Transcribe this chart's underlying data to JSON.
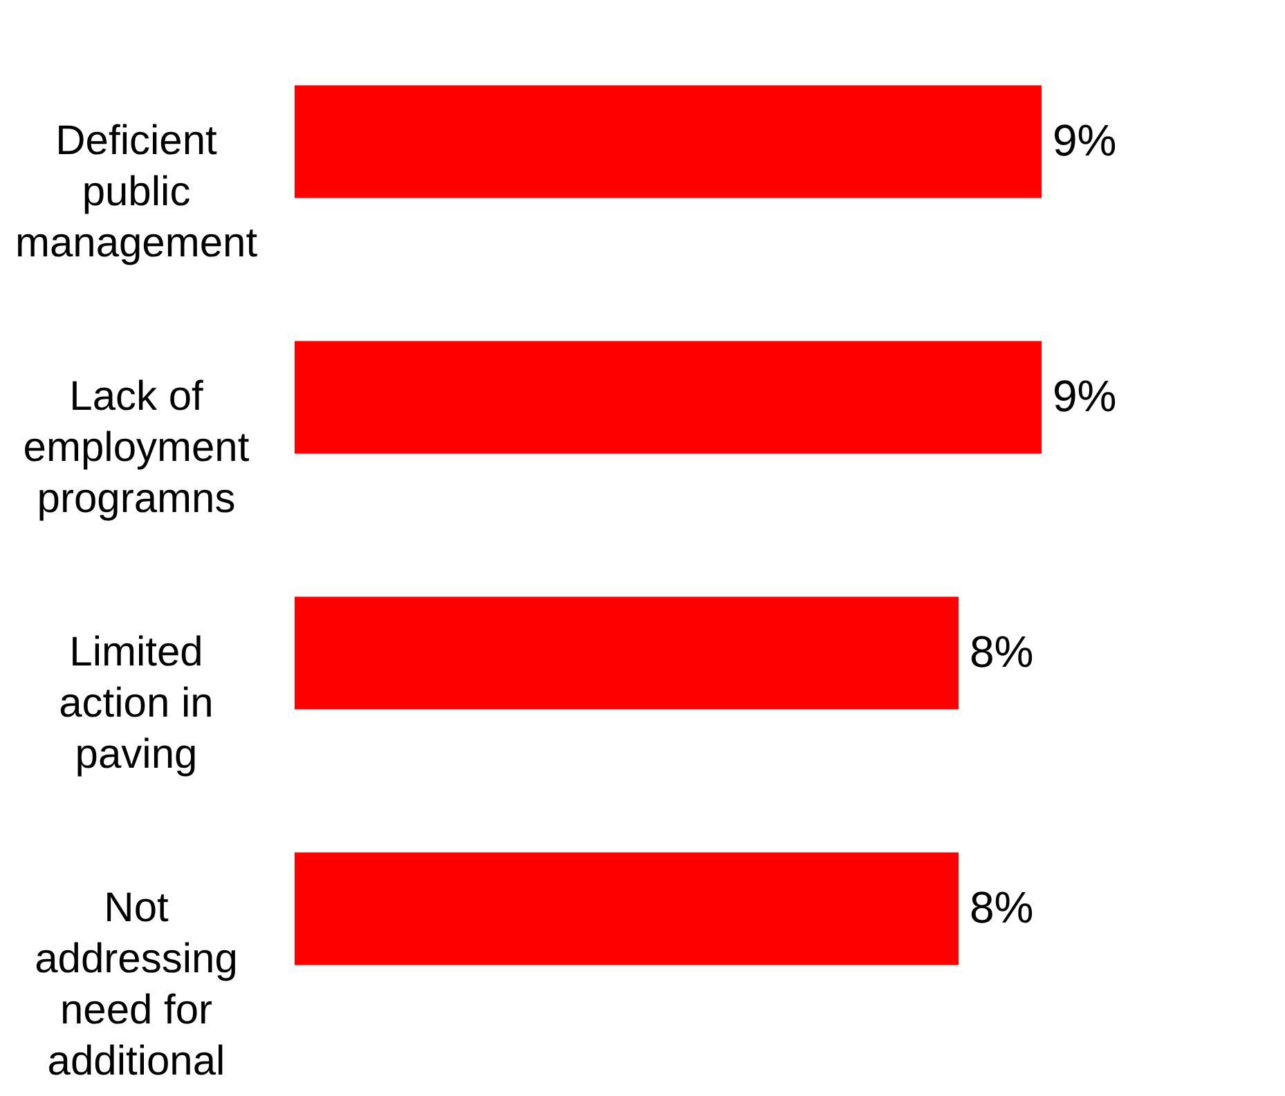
{
  "chart_data": {
    "type": "bar",
    "orientation": "horizontal",
    "categories": [
      "Deficient public management",
      "Lack of employment programns",
      "Limited action in paving",
      "Not addressing need for additional"
    ],
    "values": [
      9,
      9,
      8,
      8
    ],
    "color": "#ff0000",
    "value_labels": [
      "9%",
      "9%",
      "8%",
      "8%"
    ]
  }
}
